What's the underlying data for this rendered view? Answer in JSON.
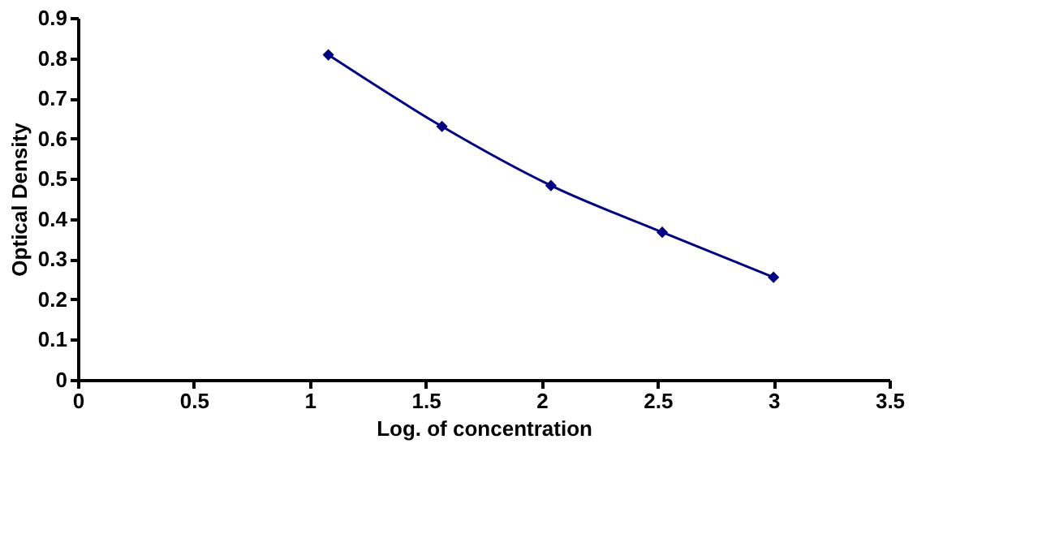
{
  "chart_data": {
    "type": "line",
    "xlabel": "Log. of concentration",
    "ylabel": "Optical Density",
    "x": [
      1.08,
      1.57,
      2.04,
      2.52,
      3.0
    ],
    "series": [
      {
        "color": "#000080",
        "values": [
          0.808,
          0.63,
          0.483,
          0.367,
          0.255
        ]
      }
    ],
    "xlim": [
      0,
      3.5
    ],
    "xticks": [
      0,
      0.5,
      1,
      1.5,
      2,
      2.5,
      3,
      3.5
    ],
    "ylim": [
      0,
      0.9
    ],
    "yticks": [
      0,
      0.1,
      0.2,
      0.3,
      0.4,
      0.5,
      0.6,
      0.7,
      0.8,
      0.9
    ],
    "grid": false,
    "marker": "diamond",
    "line_style": "solid"
  }
}
